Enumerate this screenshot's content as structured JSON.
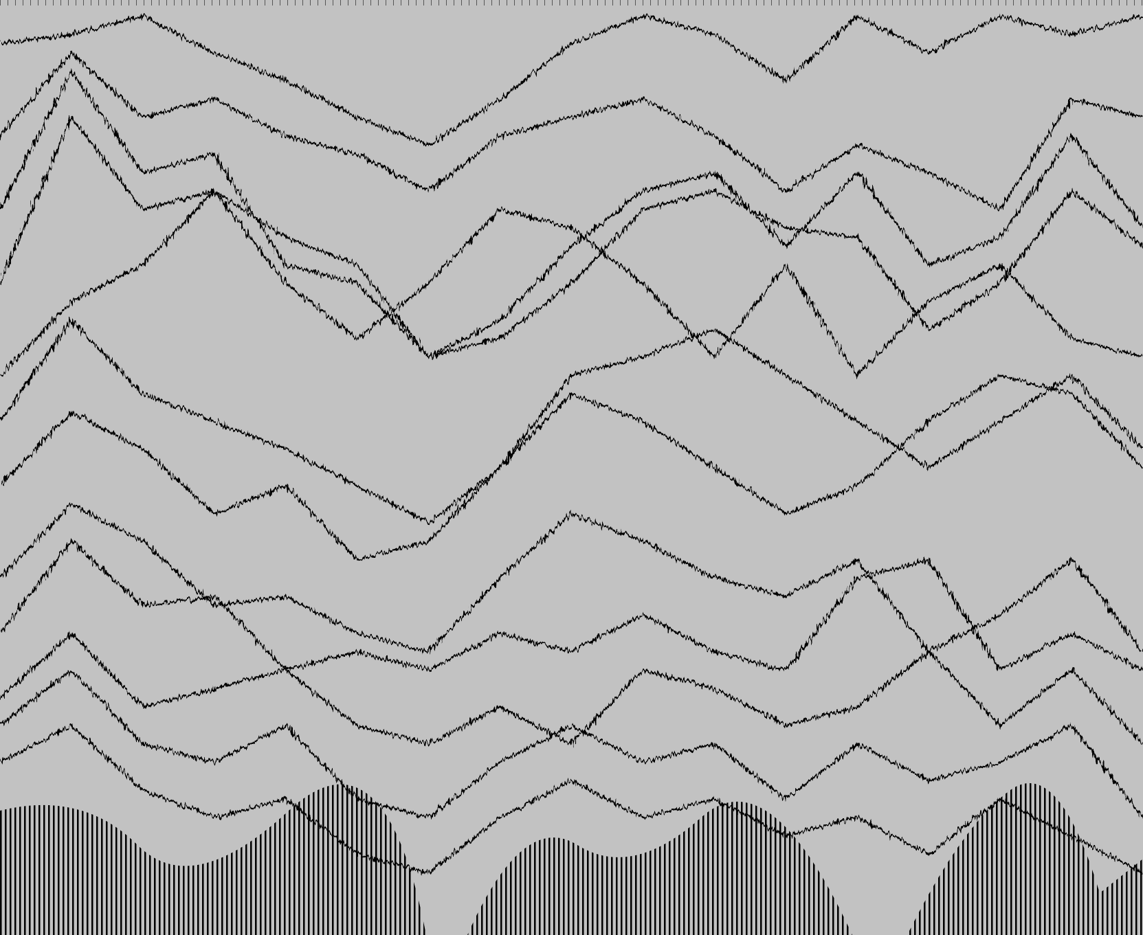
{
  "chart_data": {
    "type": "line",
    "ylim": [
      0,
      100
    ],
    "series": [
      {
        "color": "#000000",
        "values": [
          96,
          97,
          99,
          95,
          92,
          88,
          85,
          90,
          96,
          99,
          97,
          92,
          99,
          95,
          99,
          97,
          99
        ]
      },
      {
        "color": "#000000",
        "values": [
          86,
          95,
          88,
          90,
          86,
          84,
          80,
          86,
          88,
          90,
          86,
          80,
          85,
          82,
          78,
          90,
          88
        ]
      },
      {
        "color": "#000000",
        "values": [
          78,
          93,
          82,
          84,
          72,
          70,
          62,
          66,
          74,
          80,
          82,
          74,
          82,
          72,
          75,
          86,
          76
        ]
      },
      {
        "color": "#000000",
        "values": [
          70,
          88,
          78,
          80,
          75,
          72,
          62,
          64,
          70,
          78,
          80,
          76,
          75,
          65,
          70,
          80,
          74
        ]
      },
      {
        "color": "#000000",
        "values": [
          60,
          68,
          72,
          80,
          70,
          64,
          70,
          78,
          76,
          70,
          62,
          72,
          60,
          68,
          72,
          64,
          62
        ]
      },
      {
        "color": "#000000",
        "values": [
          55,
          66,
          58,
          55,
          52,
          48,
          44,
          50,
          60,
          62,
          65,
          60,
          55,
          50,
          55,
          60,
          52
        ]
      },
      {
        "color": "#000000",
        "values": [
          48,
          56,
          52,
          45,
          48,
          40,
          42,
          50,
          58,
          55,
          50,
          45,
          48,
          55,
          60,
          58,
          50
        ]
      },
      {
        "color": "#000000",
        "values": [
          38,
          46,
          42,
          35,
          36,
          32,
          30,
          38,
          45,
          42,
          38,
          36,
          40,
          30,
          34,
          40,
          30
        ]
      },
      {
        "color": "#000000",
        "values": [
          32,
          42,
          35,
          36,
          28,
          30,
          28,
          32,
          30,
          34,
          30,
          28,
          38,
          40,
          28,
          32,
          28
        ]
      },
      {
        "color": "#000000",
        "values": [
          25,
          32,
          24,
          26,
          28,
          22,
          20,
          24,
          20,
          28,
          26,
          22,
          24,
          30,
          22,
          28,
          20
        ]
      },
      {
        "color": "#000000",
        "values": [
          22,
          28,
          20,
          18,
          22,
          14,
          12,
          18,
          22,
          18,
          20,
          14,
          20,
          16,
          18,
          22,
          12
        ]
      },
      {
        "color": "#000000",
        "values": [
          18,
          22,
          15,
          12,
          14,
          8,
          6,
          12,
          16,
          12,
          14,
          10,
          12,
          8,
          14,
          10,
          6
        ]
      }
    ]
  }
}
